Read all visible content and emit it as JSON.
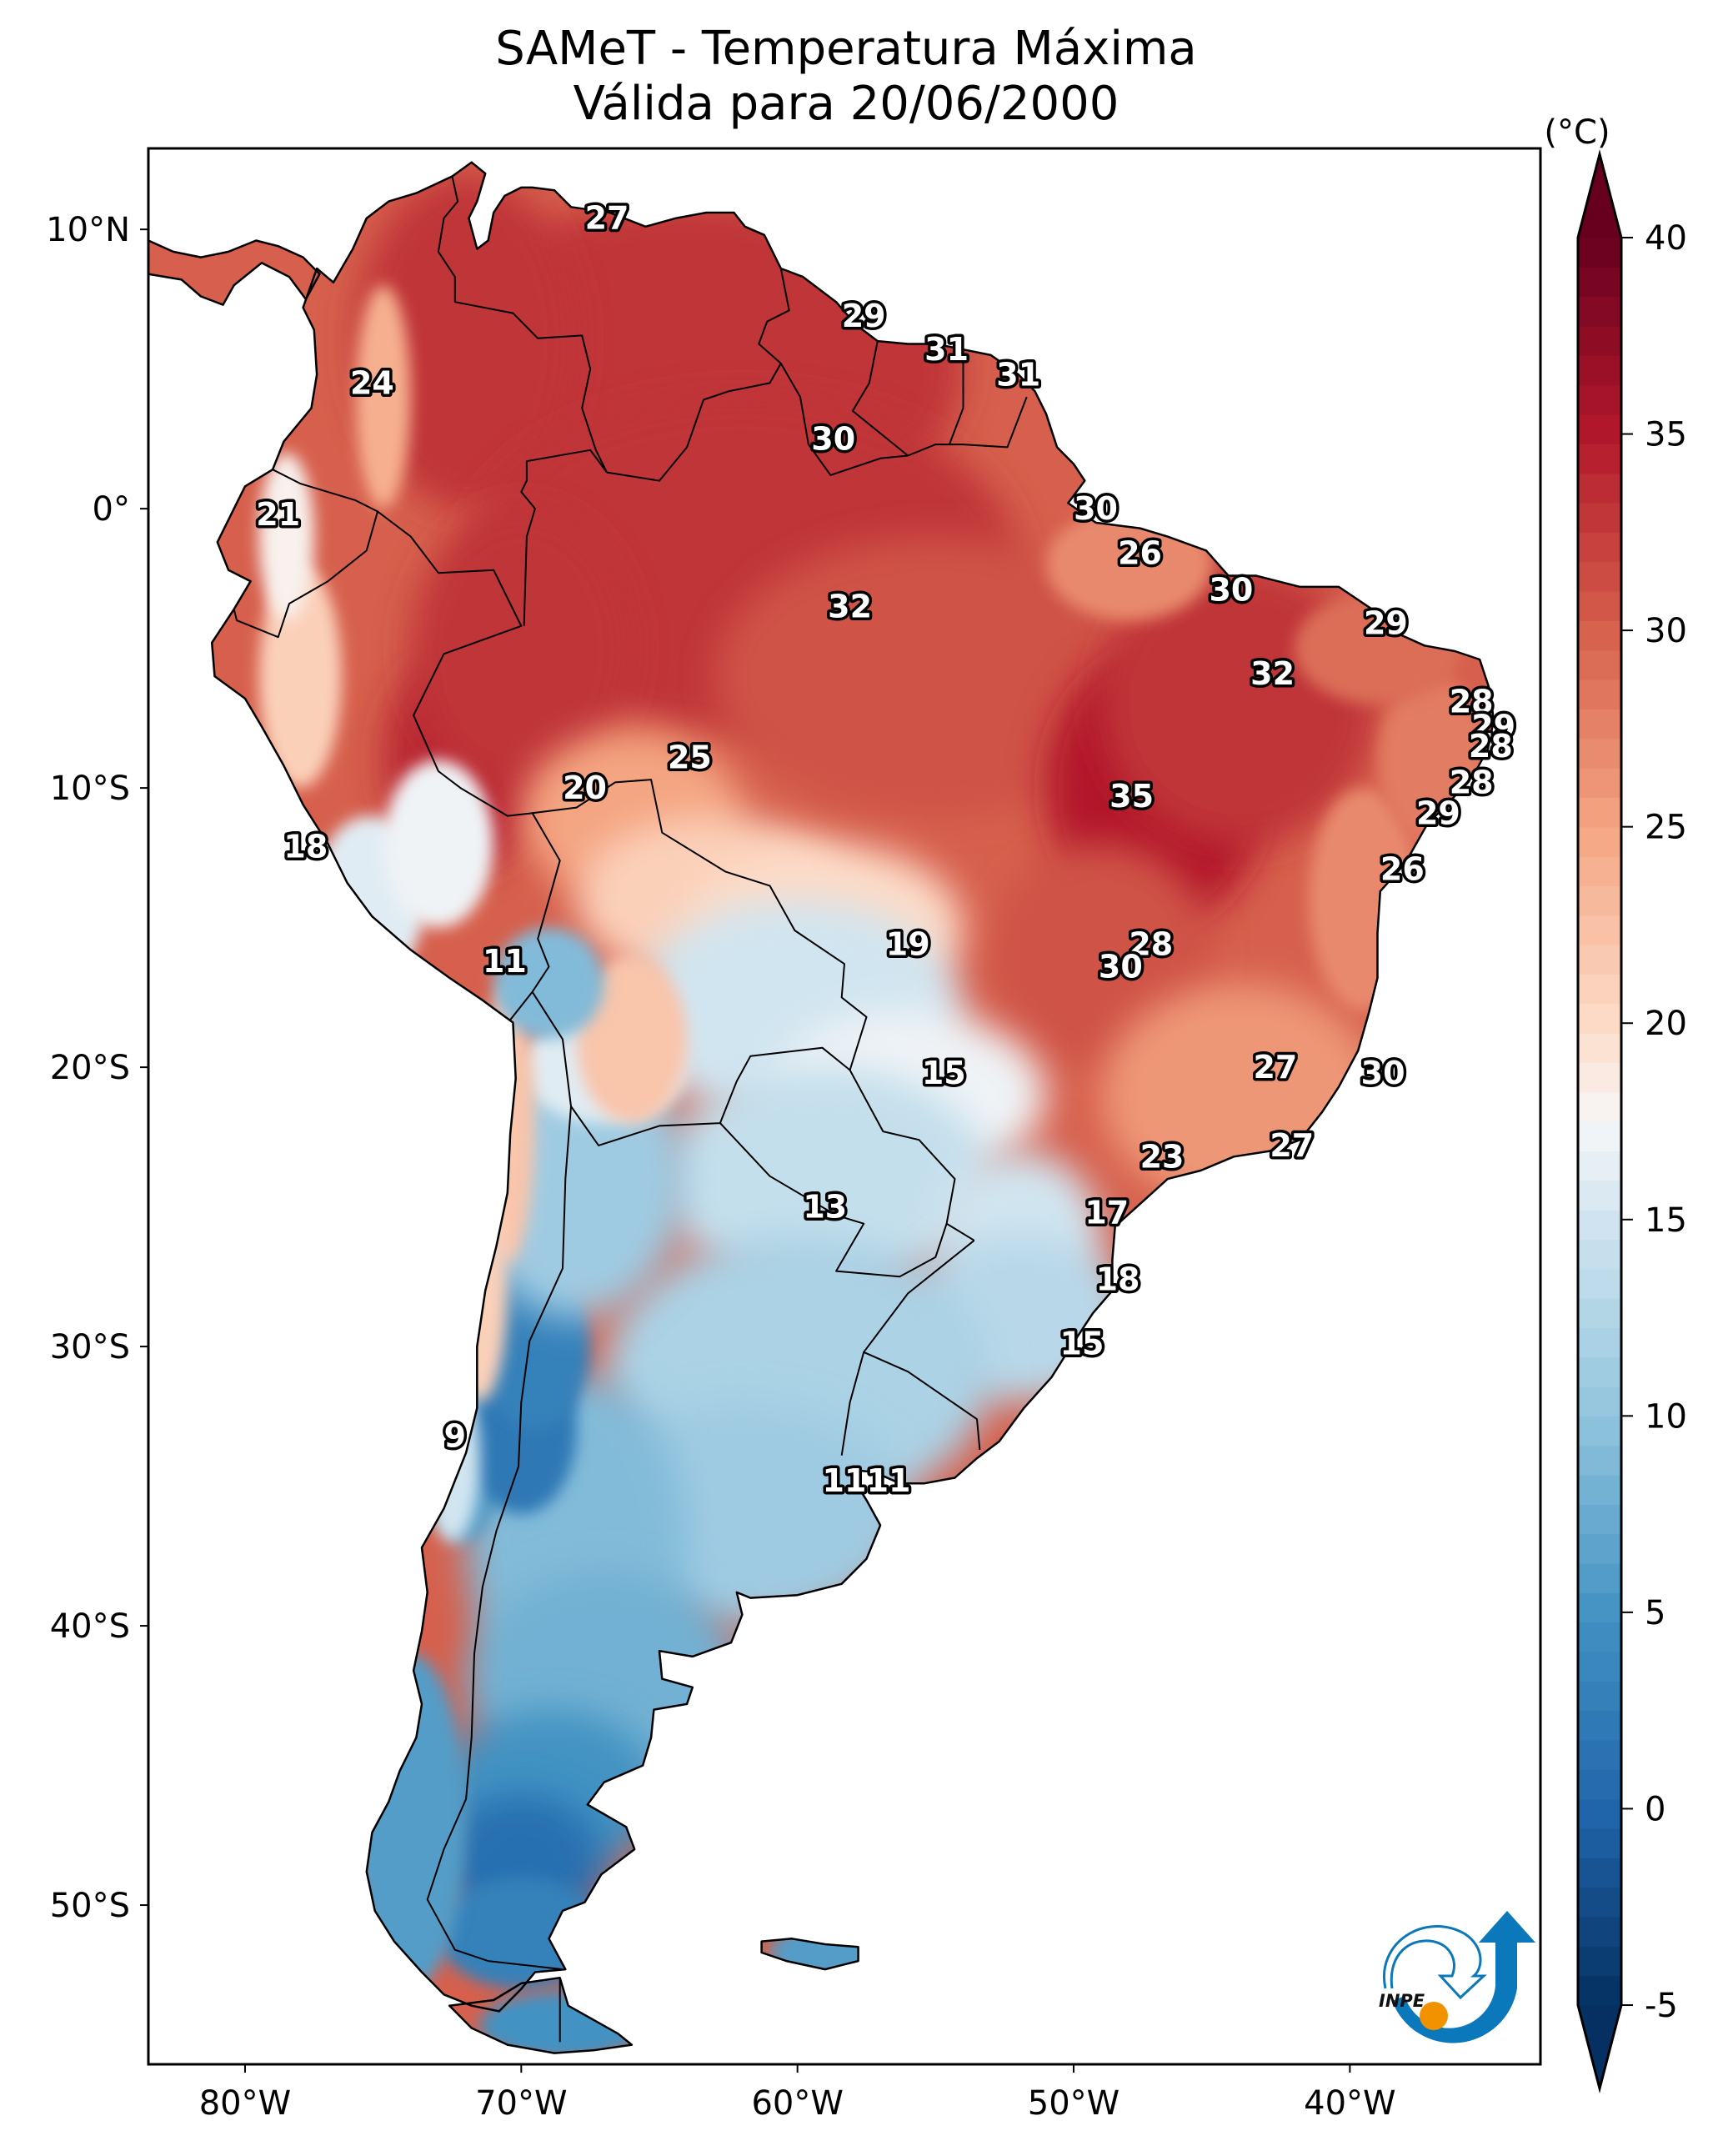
{
  "chart_data": {
    "type": "heatmap",
    "title": "SAMeT - Temperatura Máxima",
    "subtitle": "Válida para 20/06/2000",
    "variable": "Maximum temperature",
    "units_label": "(°C)",
    "colormap": "RdBu_r",
    "color_range": [
      -5,
      40
    ],
    "colorbar_extend": "both",
    "colorbar_ticks": [
      40,
      35,
      30,
      25,
      20,
      15,
      10,
      5,
      0,
      -5
    ],
    "colorbar_tick_labels": [
      "40",
      "35",
      "30",
      "25",
      "20",
      "15",
      "10",
      "5",
      "0",
      "-5"
    ],
    "colorbar_stops": [
      {
        "value": -5,
        "color": "#053061"
      },
      {
        "value": 0,
        "color": "#2166ac"
      },
      {
        "value": 5,
        "color": "#4393c3"
      },
      {
        "value": 10,
        "color": "#92c5de"
      },
      {
        "value": 15,
        "color": "#d1e5f0"
      },
      {
        "value": 17.5,
        "color": "#f7f7f7"
      },
      {
        "value": 20,
        "color": "#fddbc7"
      },
      {
        "value": 25,
        "color": "#f4a582"
      },
      {
        "value": 30,
        "color": "#d6604d"
      },
      {
        "value": 35,
        "color": "#b2182b"
      },
      {
        "value": 40,
        "color": "#67001f"
      }
    ],
    "x_ticks": [
      {
        "lon": -80,
        "label": "80°W"
      },
      {
        "lon": -70,
        "label": "70°W"
      },
      {
        "lon": -60,
        "label": "60°W"
      },
      {
        "lon": -50,
        "label": "50°W"
      },
      {
        "lon": -40,
        "label": "40°W"
      }
    ],
    "y_ticks": [
      {
        "lat": 10,
        "label": "10°N"
      },
      {
        "lat": 0,
        "label": "0°"
      },
      {
        "lat": -10,
        "label": "10°S"
      },
      {
        "lat": -20,
        "label": "20°S"
      },
      {
        "lat": -30,
        "label": "30°S"
      },
      {
        "lat": -40,
        "label": "40°S"
      },
      {
        "lat": -50,
        "label": "50°S"
      }
    ],
    "extent": {
      "lon_min": -83.5,
      "lon_max": -33.1,
      "lat_min": -55.7,
      "lat_max": 12.9
    },
    "contour_labels": [
      {
        "lon": -66.9,
        "lat": 10.4,
        "value": 27
      },
      {
        "lon": -75.4,
        "lat": 4.5,
        "value": 24
      },
      {
        "lon": -57.6,
        "lat": 6.9,
        "value": 29
      },
      {
        "lon": -54.6,
        "lat": 5.7,
        "value": 31
      },
      {
        "lon": -52.0,
        "lat": 4.8,
        "value": 31
      },
      {
        "lon": -58.7,
        "lat": 2.5,
        "value": 30
      },
      {
        "lon": -78.8,
        "lat": -0.2,
        "value": 21
      },
      {
        "lon": -49.2,
        "lat": 0.0,
        "value": 30
      },
      {
        "lon": -47.6,
        "lat": -1.6,
        "value": 26
      },
      {
        "lon": -44.3,
        "lat": -2.9,
        "value": 30
      },
      {
        "lon": -38.7,
        "lat": -4.1,
        "value": 29
      },
      {
        "lon": -58.1,
        "lat": -3.5,
        "value": 32
      },
      {
        "lon": -42.8,
        "lat": -5.9,
        "value": 32
      },
      {
        "lon": -35.6,
        "lat": -6.9,
        "value": 28
      },
      {
        "lon": -34.8,
        "lat": -7.8,
        "value": 29
      },
      {
        "lon": -34.9,
        "lat": -8.5,
        "value": 28
      },
      {
        "lon": -35.6,
        "lat": -9.8,
        "value": 28
      },
      {
        "lon": -36.8,
        "lat": -10.9,
        "value": 29
      },
      {
        "lon": -63.9,
        "lat": -8.9,
        "value": 25
      },
      {
        "lon": -67.7,
        "lat": -10.0,
        "value": 20
      },
      {
        "lon": -47.9,
        "lat": -10.3,
        "value": 35
      },
      {
        "lon": -77.8,
        "lat": -12.1,
        "value": 18
      },
      {
        "lon": -38.1,
        "lat": -12.9,
        "value": 26
      },
      {
        "lon": -56.0,
        "lat": -15.6,
        "value": 19
      },
      {
        "lon": -47.2,
        "lat": -15.6,
        "value": 28
      },
      {
        "lon": -48.3,
        "lat": -16.4,
        "value": 30
      },
      {
        "lon": -70.6,
        "lat": -16.2,
        "value": 11
      },
      {
        "lon": -54.7,
        "lat": -20.2,
        "value": 15
      },
      {
        "lon": -42.7,
        "lat": -20.0,
        "value": 27
      },
      {
        "lon": -38.8,
        "lat": -20.2,
        "value": 30
      },
      {
        "lon": -46.8,
        "lat": -23.2,
        "value": 23
      },
      {
        "lon": -42.1,
        "lat": -22.8,
        "value": 27
      },
      {
        "lon": -59.0,
        "lat": -25.0,
        "value": 13
      },
      {
        "lon": -48.8,
        "lat": -25.2,
        "value": 17
      },
      {
        "lon": -48.4,
        "lat": -27.6,
        "value": 18
      },
      {
        "lon": -49.7,
        "lat": -29.9,
        "value": 15
      },
      {
        "lon": -72.4,
        "lat": -33.2,
        "value": 9
      },
      {
        "lon": -58.3,
        "lat": -34.8,
        "value": 11
      },
      {
        "lon": -56.7,
        "lat": -34.8,
        "value": 11
      }
    ],
    "field_description": "Warm (28-36°C) over the Amazon, central and northeastern Brazil, Colombia and Venezuela lowlands; hottest (~35°C) in central Brazil (Tocantins) and near the Peru/Bolivia Andes foothills; cooler along the Andes (≈10-20°C); southern cone cold (≈5-14°C), with the coldest values (≈-3 to 3°C) in the high Andes and southern Patagonia (Santa Cruz); Falkland Islands ≈5°C."
  },
  "logo": {
    "text": "INPE",
    "name": "INPE logo"
  }
}
